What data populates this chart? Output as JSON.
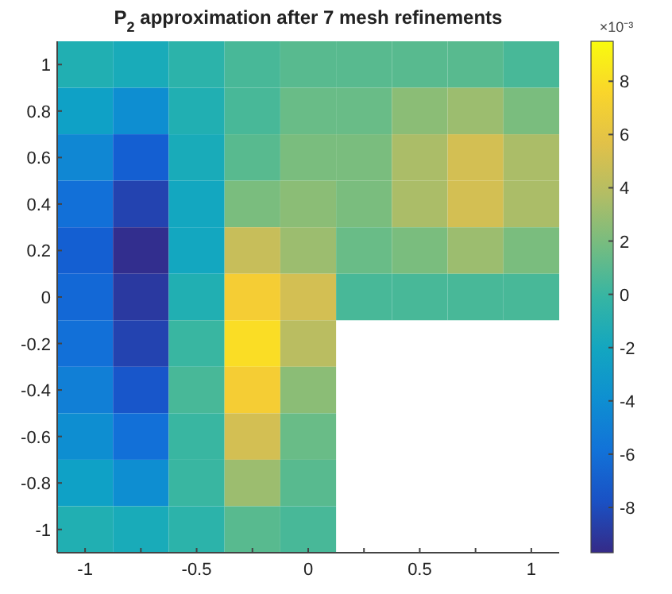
{
  "chart_data": {
    "type": "heatmap",
    "title": "P$_{2}$ approximation after 7 mesh refinements",
    "clabel": "×10⁻³",
    "categories": [
      "-1",
      null,
      "-0.5",
      null,
      "0",
      null,
      "0.5",
      null,
      "1"
    ],
    "y_categories": [
      "1",
      "0.8",
      "0.6",
      "0.4",
      "0.2",
      "0",
      "-0.2",
      "-0.4",
      "-0.6",
      "-0.8",
      "-1"
    ],
    "clim": [
      -9.7,
      9.5
    ],
    "cticks": [
      -8,
      -6,
      -4,
      -2,
      0,
      2,
      4,
      6,
      8
    ],
    "cells": [
      [
        -1,
        -1.5,
        -0.5,
        0.5,
        1,
        1,
        1,
        1,
        0.5
      ],
      [
        -2.5,
        -4,
        -1,
        0.5,
        1.5,
        1.5,
        2.5,
        3,
        2
      ],
      [
        -4.5,
        -7,
        -1.5,
        1,
        2,
        2,
        3.5,
        5,
        3.5
      ],
      [
        -6,
        -8.5,
        -2,
        2,
        2.5,
        2,
        3.5,
        5,
        3.5
      ],
      [
        -7,
        -9.5,
        -2,
        4.5,
        3,
        1.5,
        2,
        3,
        2
      ],
      [
        -6.5,
        -9,
        -1,
        7,
        5,
        0.5,
        0.5,
        0.5,
        0.5
      ],
      [
        -6,
        -8.5,
        0,
        8,
        4,
        null,
        null,
        null,
        null
      ],
      [
        -5,
        -7.5,
        0.5,
        7,
        2.5,
        null,
        null,
        null,
        null
      ],
      [
        -4,
        -6,
        0,
        5,
        1.5,
        null,
        null,
        null,
        null
      ],
      [
        -2.5,
        -4,
        0,
        3,
        1,
        null,
        null,
        null,
        null
      ],
      [
        -1,
        -1.5,
        -0.5,
        1,
        0.5,
        null,
        null,
        null,
        null
      ]
    ]
  }
}
